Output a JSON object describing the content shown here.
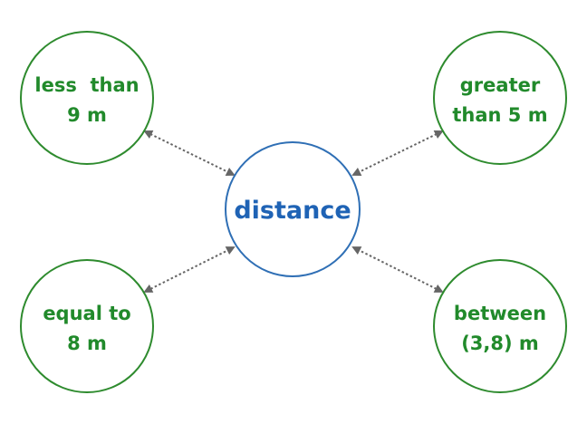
{
  "center": {
    "label": "distance"
  },
  "nodes": [
    {
      "id": "top-left",
      "lines": [
        "less  than",
        "9 m"
      ]
    },
    {
      "id": "top-right",
      "lines": [
        "greater",
        "than 5 m"
      ]
    },
    {
      "id": "bottom-left",
      "lines": [
        "equal to",
        "8 m"
      ]
    },
    {
      "id": "bottom-right",
      "lines": [
        "between",
        "(3,8) m"
      ]
    }
  ],
  "colors": {
    "outer_stroke": "#2e8b2e",
    "outer_text": "#218a2b",
    "center_stroke": "#2f6fb5",
    "center_text": "#1f63b5",
    "connector": "#666666"
  }
}
